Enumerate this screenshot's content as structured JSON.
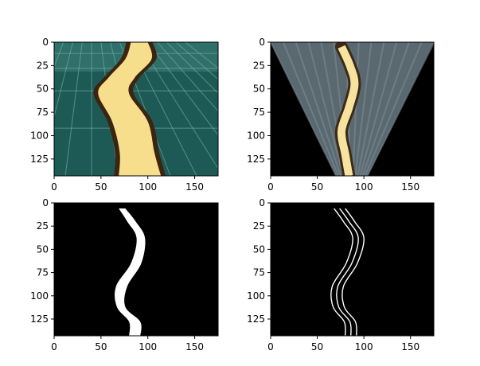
{
  "chart_data": [
    {
      "type": "image",
      "title": "",
      "xlabel": "",
      "ylabel": "",
      "xlim": [
        0,
        175
      ],
      "ylim": [
        143,
        0
      ],
      "xticks": [
        0,
        50,
        100,
        150
      ],
      "yticks": [
        0,
        25,
        50,
        75,
        100,
        125
      ],
      "content": "camera view",
      "colors": {
        "floor": "#1e5a55",
        "floor_light": "#3a7f78",
        "grid": "#7fb9b4",
        "track": "#f6de8c",
        "track_edge": "#3b2410"
      },
      "track_left": [
        [
          82,
          0
        ],
        [
          76,
          18
        ],
        [
          58,
          38
        ],
        [
          47,
          55
        ],
        [
          62,
          85
        ],
        [
          70,
          118
        ],
        [
          69,
          143
        ]
      ],
      "track_right": [
        [
          100,
          0
        ],
        [
          104,
          18
        ],
        [
          86,
          38
        ],
        [
          80,
          55
        ],
        [
          100,
          85
        ],
        [
          107,
          118
        ],
        [
          114,
          143
        ]
      ]
    },
    {
      "type": "image",
      "title": "",
      "xlabel": "",
      "ylabel": "",
      "xlim": [
        0,
        175
      ],
      "ylim": [
        143,
        0
      ],
      "xticks": [
        0,
        50,
        100,
        150
      ],
      "yticks": [
        0,
        25,
        50,
        75,
        100,
        125
      ],
      "content": "perspective warp",
      "colors": {
        "background": "#000000",
        "floor": "#5a6870",
        "floor_light": "#8896a0",
        "track": "#f8e2a0",
        "track_edge": "#3b2a18"
      },
      "trapezoid": [
        [
          0,
          0
        ],
        [
          175,
          0
        ],
        [
          104,
          143
        ],
        [
          70,
          143
        ]
      ],
      "track_centerline": [
        [
          76,
          5
        ],
        [
          85,
          25
        ],
        [
          90,
          45
        ],
        [
          84,
          70
        ],
        [
          76,
          95
        ],
        [
          80,
          120
        ],
        [
          84,
          143
        ]
      ]
    },
    {
      "type": "image",
      "title": "",
      "xlabel": "",
      "ylabel": "",
      "xlim": [
        0,
        175
      ],
      "ylim": [
        143,
        0
      ],
      "xticks": [
        0,
        50,
        100,
        150
      ],
      "yticks": [
        0,
        25,
        50,
        75,
        100,
        125
      ],
      "content": "binary mask",
      "colors": {
        "background": "#000000",
        "mask": "#ffffff"
      },
      "mask_left": [
        [
          69,
          6
        ],
        [
          78,
          20
        ],
        [
          88,
          38
        ],
        [
          82,
          65
        ],
        [
          66,
          90
        ],
        [
          67,
          112
        ],
        [
          80,
          128
        ],
        [
          80,
          143
        ]
      ],
      "mask_right": [
        [
          76,
          6
        ],
        [
          87,
          20
        ],
        [
          97,
          38
        ],
        [
          93,
          65
        ],
        [
          78,
          90
        ],
        [
          76,
          112
        ],
        [
          92,
          128
        ],
        [
          92,
          143
        ]
      ]
    },
    {
      "type": "image",
      "title": "",
      "xlabel": "",
      "ylabel": "",
      "xlim": [
        0,
        175
      ],
      "ylim": [
        143,
        0
      ],
      "xticks": [
        0,
        50,
        100,
        150
      ],
      "yticks": [
        0,
        25,
        50,
        75,
        100,
        125
      ],
      "content": "lane outlines",
      "colors": {
        "background": "#000000",
        "line": "#ffffff"
      },
      "lines": [
        [
          [
            68,
            6
          ],
          [
            78,
            20
          ],
          [
            88,
            38
          ],
          [
            81,
            65
          ],
          [
            66,
            90
          ],
          [
            67,
            112
          ],
          [
            79,
            128
          ],
          [
            80,
            143
          ]
        ],
        [
          [
            74,
            6
          ],
          [
            84,
            20
          ],
          [
            94,
            38
          ],
          [
            87,
            65
          ],
          [
            72,
            90
          ],
          [
            73,
            112
          ],
          [
            85,
            128
          ],
          [
            86,
            143
          ]
        ],
        [
          [
            80,
            6
          ],
          [
            90,
            20
          ],
          [
            100,
            38
          ],
          [
            93,
            65
          ],
          [
            78,
            90
          ],
          [
            79,
            112
          ],
          [
            91,
            128
          ],
          [
            92,
            143
          ]
        ]
      ]
    }
  ]
}
